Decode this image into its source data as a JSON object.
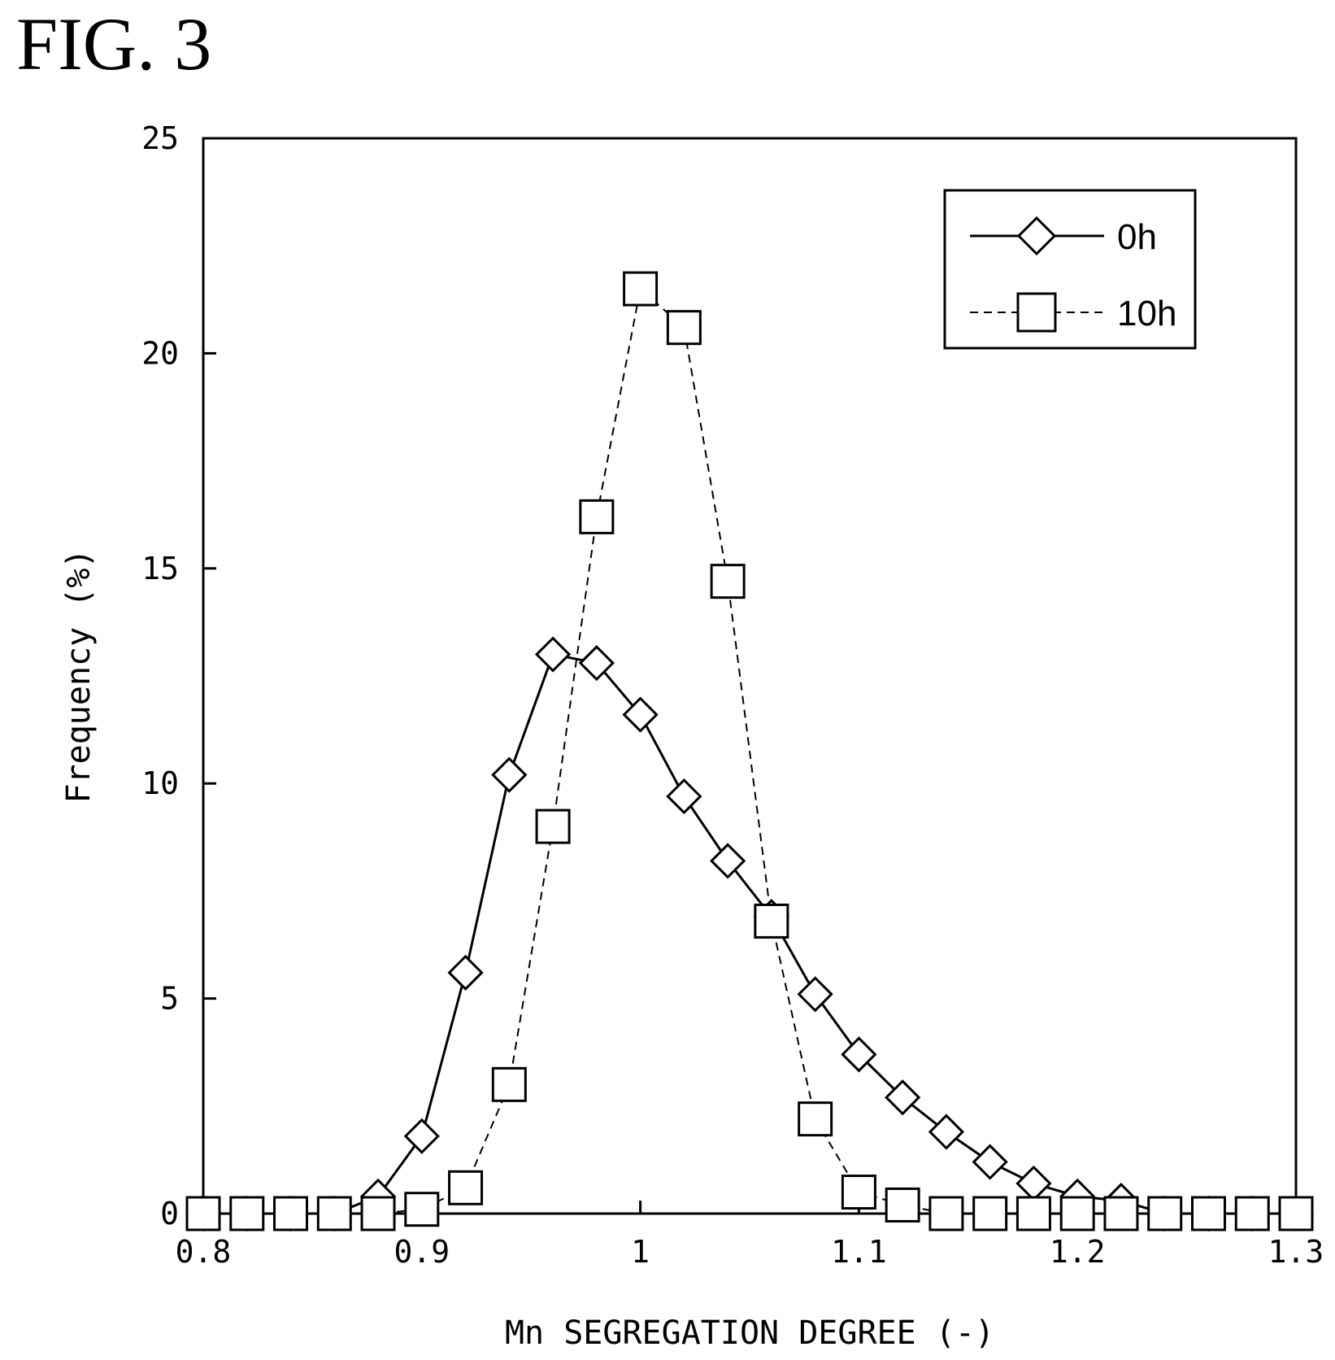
{
  "figure": {
    "label": "FIG. 3"
  },
  "chart_data": {
    "type": "line",
    "xlabel": "Mn SEGREGATION DEGREE (-)",
    "ylabel": "Frequency (%)",
    "xlim": [
      0.8,
      1.3
    ],
    "ylim": [
      0,
      25
    ],
    "xticks": [
      0.8,
      0.9,
      1.0,
      1.1,
      1.2,
      1.3
    ],
    "xtick_labels": [
      "0.8",
      "0.9",
      "1",
      "1.1",
      "1.2",
      "1.3"
    ],
    "yticks": [
      0,
      5,
      10,
      15,
      20,
      25
    ],
    "ytick_labels": [
      "0",
      "5",
      "10",
      "15",
      "20",
      "25"
    ],
    "grid": false,
    "legend_position": "top-right",
    "x": [
      0.8,
      0.82,
      0.84,
      0.86,
      0.88,
      0.9,
      0.92,
      0.94,
      0.96,
      0.98,
      1.0,
      1.02,
      1.04,
      1.06,
      1.08,
      1.1,
      1.12,
      1.14,
      1.16,
      1.18,
      1.2,
      1.22,
      1.24,
      1.26,
      1.28,
      1.3
    ],
    "series": [
      {
        "name": "0h",
        "marker": "diamond",
        "line": "solid",
        "values": [
          0,
          0,
          0,
          0,
          0.4,
          1.8,
          5.6,
          10.2,
          13.0,
          12.8,
          11.6,
          9.7,
          8.2,
          6.9,
          5.1,
          3.7,
          2.7,
          1.9,
          1.2,
          0.7,
          0.4,
          0.3,
          0,
          0,
          0,
          0
        ]
      },
      {
        "name": "10h",
        "marker": "square",
        "line": "dashed",
        "values": [
          0,
          0,
          0,
          0,
          0,
          0.1,
          0.6,
          3.0,
          9.0,
          16.2,
          21.5,
          20.6,
          14.7,
          6.8,
          2.2,
          0.5,
          0.2,
          0,
          0,
          0,
          0,
          0,
          0,
          0,
          0,
          0
        ]
      }
    ]
  }
}
